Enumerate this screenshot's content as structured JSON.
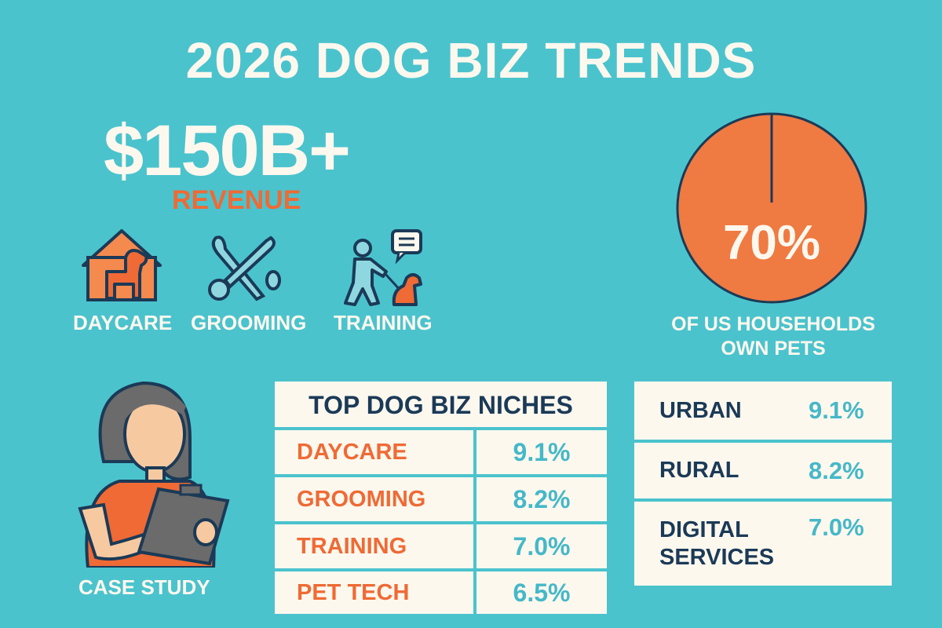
{
  "title": "2026 DOG BIZ TRENDS",
  "revenue": {
    "value": "$150B+",
    "label": "REVENUE"
  },
  "services": [
    {
      "label": "DAYCARE",
      "icon": "dog-house-icon"
    },
    {
      "label": "GROOMING",
      "icon": "scissors-icon"
    },
    {
      "label": "TRAINING",
      "icon": "trainer-with-dog-icon"
    }
  ],
  "households": {
    "percent": 70,
    "percent_label": "70%",
    "line1": "OF US HOUSEHOLDS",
    "line2": "OWN PETS"
  },
  "case_study": {
    "label": "CASE STUDY",
    "icon": "woman-with-clipboard-icon"
  },
  "niches": {
    "title": "TOP DOG BIZ NICHES",
    "rows": [
      {
        "name": "DAYCARE",
        "value": "9.1%"
      },
      {
        "name": "GROOMING",
        "value": "8.2%"
      },
      {
        "name": "TRAINING",
        "value": "7.0%"
      },
      {
        "name": "PET TECH",
        "value": "6.5%"
      }
    ]
  },
  "segments": {
    "rows": [
      {
        "name": "URBAN",
        "value": "9.1%"
      },
      {
        "name": "RURAL",
        "value": "8.2%"
      },
      {
        "name_line1": "DIGITAL",
        "name_line2": "SERVICES",
        "value": "7.0%"
      }
    ]
  },
  "colors": {
    "background": "#4bc3cd",
    "orange": "#ef6a35",
    "navy": "#1b3a57",
    "cream": "#fdf8ee",
    "teal_text": "#45b8c8"
  }
}
